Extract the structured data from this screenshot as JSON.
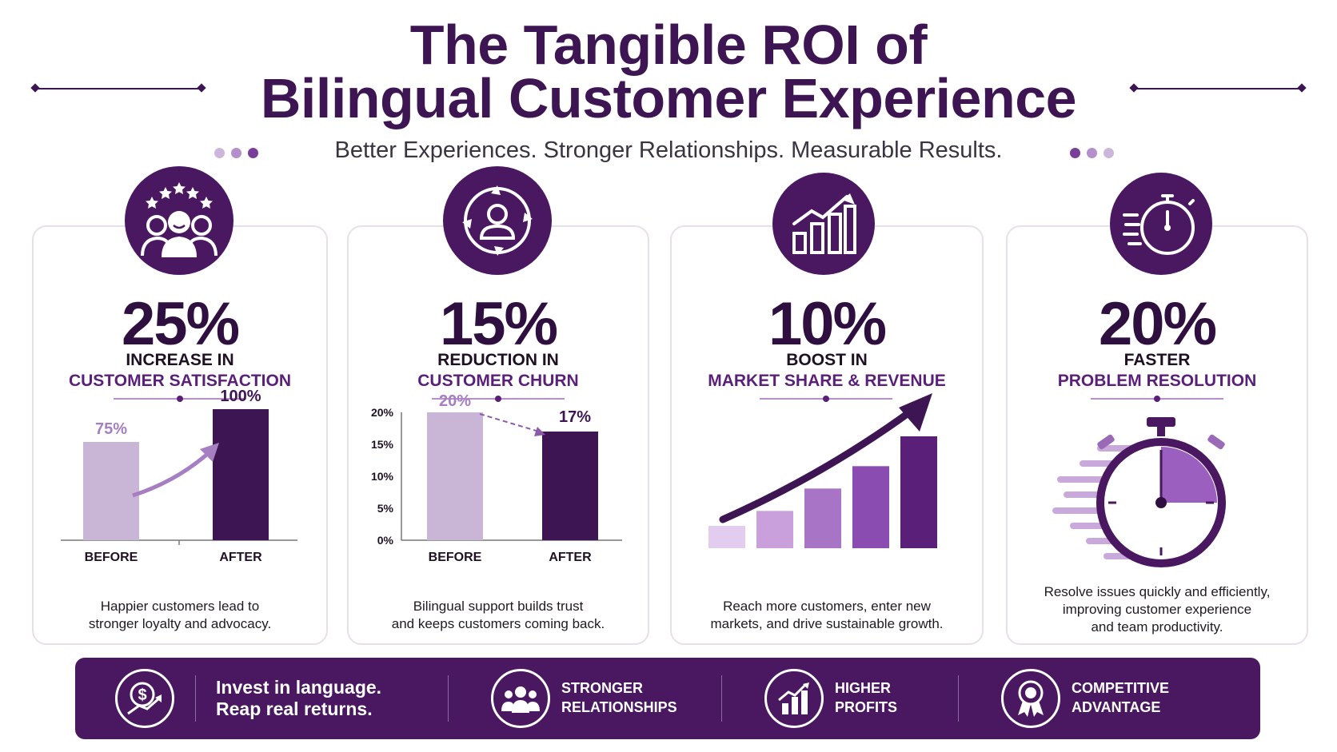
{
  "header": {
    "title_line1": "The Tangible ROI of",
    "title_line2": "Bilingual Customer Experience",
    "subtitle": "Better Experiences. Stronger Relationships. Measurable Results."
  },
  "colors": {
    "primary": "#3e1553",
    "accent": "#9b5fc0",
    "light": "#c9b5d6"
  },
  "cards": [
    {
      "icon": "customers-stars-icon",
      "percent": "25%",
      "line1": "INCREASE IN",
      "line2": "CUSTOMER SATISFACTION",
      "description_line1": "Happier customers lead to",
      "description_line2": "stronger loyalty and advocacy."
    },
    {
      "icon": "customer-retention-icon",
      "percent": "15%",
      "line1": "REDUCTION IN",
      "line2": "CUSTOMER CHURN",
      "description_line1": "Bilingual support builds trust",
      "description_line2": "and keeps customers coming back."
    },
    {
      "icon": "growth-chart-icon",
      "percent": "10%",
      "line1": "BOOST IN",
      "line2": "MARKET SHARE & REVENUE",
      "description_line1": "Reach more customers, enter new",
      "description_line2": "markets, and drive sustainable growth."
    },
    {
      "icon": "stopwatch-icon",
      "percent": "20%",
      "line1": "FASTER",
      "line2": "PROBLEM RESOLUTION",
      "description_line1": "Resolve issues quickly and efficiently,",
      "description_line2": "improving customer experience",
      "description_line3": "and team productivity."
    }
  ],
  "chart_data": [
    {
      "type": "bar",
      "categories": [
        "BEFORE",
        "AFTER"
      ],
      "values": [
        75,
        100
      ],
      "data_labels": [
        "75%",
        "100%"
      ],
      "ylim": [
        0,
        100
      ]
    },
    {
      "type": "bar",
      "categories": [
        "BEFORE",
        "AFTER"
      ],
      "values": [
        20,
        17
      ],
      "data_labels": [
        "20%",
        "17%"
      ],
      "yticks": [
        "20%",
        "15%",
        "10%",
        "5%",
        "0%"
      ],
      "ylim": [
        0,
        20
      ]
    },
    {
      "type": "bar",
      "categories": [
        "",
        "",
        "",
        "",
        ""
      ],
      "values": [
        3,
        5,
        8,
        11,
        15
      ],
      "ylim": [
        0,
        15
      ]
    }
  ],
  "stopwatch": {
    "elapsed_fraction": 0.25
  },
  "footer": {
    "tagline_line1": "Invest in language.",
    "tagline_line2": "Reap real returns.",
    "items": [
      {
        "icon": "people-icon",
        "line1": "STRONGER",
        "line2": "RELATIONSHIPS"
      },
      {
        "icon": "bar-chart-icon",
        "line1": "HIGHER",
        "line2": "PROFITS"
      },
      {
        "icon": "award-ribbon-icon",
        "line1": "COMPETITIVE",
        "line2": "ADVANTAGE"
      }
    ]
  }
}
